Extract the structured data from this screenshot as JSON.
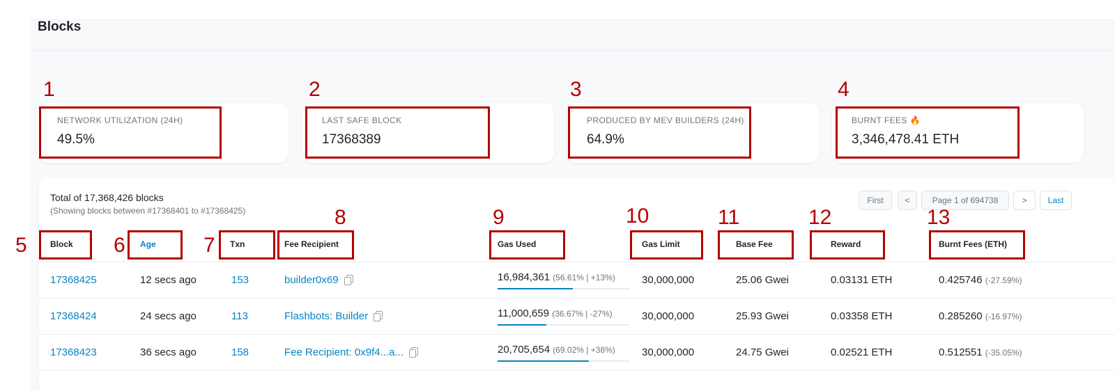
{
  "page": {
    "title": "Blocks"
  },
  "stats": [
    {
      "number": "1",
      "label": "NETWORK UTILIZATION (24H)",
      "value": "49.5%"
    },
    {
      "number": "2",
      "label": "LAST SAFE BLOCK",
      "value": "17368389"
    },
    {
      "number": "3",
      "label": "PRODUCED BY MEV BUILDERS (24H)",
      "value": "64.9%"
    },
    {
      "number": "4",
      "label": "BURNT FEES",
      "icon": "flame-icon",
      "icon_glyph": "🔥",
      "value": "3,346,478.41 ETH"
    }
  ],
  "table": {
    "total": "Total of 17,368,426 blocks",
    "showing": "(Showing blocks between #17368401 to #17368425)",
    "pagination": {
      "first": "First",
      "prev": "<",
      "page": "Page 1 of 694738",
      "next": ">",
      "last": "Last"
    },
    "columns": [
      {
        "number": "5",
        "label": "Block"
      },
      {
        "number": "6",
        "label": "Age"
      },
      {
        "number": "7",
        "label": "Txn"
      },
      {
        "number": "8",
        "label": "Fee Recipient"
      },
      {
        "number": "9",
        "label": "Gas Used"
      },
      {
        "number": "10",
        "label": "Gas Limit"
      },
      {
        "number": "11",
        "label": "Base Fee"
      },
      {
        "number": "12",
        "label": "Reward"
      },
      {
        "number": "13",
        "label": "Burnt Fees (ETH)"
      }
    ],
    "rows": [
      {
        "block": "17368425",
        "age": "12 secs ago",
        "txn": "153",
        "recipient": "builder0x69",
        "gas_used": "16,984,361",
        "gas_detail": "(56.61% | +13%)",
        "gas_pct": 0.5661,
        "gas_limit": "30,000,000",
        "base_fee": "25.06 Gwei",
        "reward": "0.03131 ETH",
        "burnt": "0.425746",
        "burnt_detail": "(-27.59%)"
      },
      {
        "block": "17368424",
        "age": "24 secs ago",
        "txn": "113",
        "recipient": "Flashbots: Builder",
        "gas_used": "11,000,659",
        "gas_detail": "(36.67% | -27%)",
        "gas_pct": 0.3667,
        "gas_limit": "30,000,000",
        "base_fee": "25.93 Gwei",
        "reward": "0.03358 ETH",
        "burnt": "0.285260",
        "burnt_detail": "(-16.97%)"
      },
      {
        "block": "17368423",
        "age": "36 secs ago",
        "txn": "158",
        "recipient": "Fee Recipient: 0x9f4...a...",
        "gas_used": "20,705,654",
        "gas_detail": "(69.02% | +38%)",
        "gas_pct": 0.6902,
        "gas_limit": "30,000,000",
        "base_fee": "24.75 Gwei",
        "reward": "0.02521 ETH",
        "burnt": "0.512551",
        "burnt_detail": "(-35.05%)"
      }
    ]
  }
}
